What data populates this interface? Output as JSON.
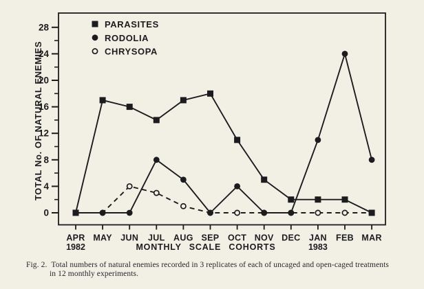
{
  "figure": {
    "caption_label": "Fig. 2.",
    "caption_line1": "Total numbers of natural enemies recorded in 3 replicates of each of uncaged and open-caged treatments",
    "caption_line2": "in 12 monthly experiments."
  },
  "chart_data": {
    "type": "line",
    "title": "",
    "ylabel": "TOTAL No. OF NATURAL ENEMIES",
    "xlabel": "MONTHLY SCALE COHORTS",
    "categories": [
      "APR",
      "MAY",
      "JUN",
      "JUL",
      "AUG",
      "SEP",
      "OCT",
      "NOV",
      "DEC",
      "JAN",
      "FEB",
      "MAR"
    ],
    "x_year_notes": [
      {
        "index": 0,
        "label": "1982"
      },
      {
        "index": 9,
        "label": "1983"
      }
    ],
    "ylim": [
      0,
      28
    ],
    "ytick_major_step": 4,
    "ytick_minor_step": 2,
    "grid": false,
    "legend_position": "top-left-inside",
    "series": [
      {
        "name": "PARASITES",
        "marker": "filled-square",
        "line": "solid",
        "values": [
          0,
          17,
          16,
          14,
          17,
          18,
          11,
          5,
          2,
          2,
          2,
          0
        ]
      },
      {
        "name": "RODOLIA",
        "marker": "filled-circle",
        "line": "solid",
        "values": [
          0,
          0,
          0,
          8,
          5,
          0,
          4,
          0,
          0,
          11,
          24,
          8
        ]
      },
      {
        "name": "CHRYSOPA",
        "marker": "open-circle",
        "line": "dashed",
        "values": [
          0,
          0,
          4,
          3,
          1,
          0,
          0,
          0,
          0,
          0,
          0,
          0
        ]
      }
    ],
    "ink_color": "#1c1b1e",
    "paper_color": "#f2efe4"
  }
}
